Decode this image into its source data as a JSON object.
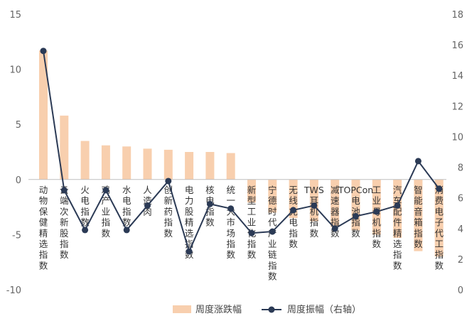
{
  "chart_data": {
    "type": "bar+line",
    "title": "",
    "categories": [
      "动物保健精选指数",
      "云端次新股指数",
      "火电指数",
      "鸡产业指数",
      "水电指数",
      "人造肉",
      "创新药指数",
      "电力股精选指数",
      "核电指数",
      "统一大市场指数",
      "新型工业化指数",
      "宁德时代产业链指数",
      "无线充电指数",
      "TWS耳机指数",
      "减速器指数",
      "TOPCon电池指数",
      "工业母机指数",
      "汽车配件精选指数",
      "智能音箱指数",
      "消费电子代工指数"
    ],
    "series": [
      {
        "name": "周度涨跌幅",
        "axis": "left",
        "kind": "bar",
        "color": "#f8cfae",
        "values": [
          11.7,
          5.8,
          3.5,
          3.1,
          3.0,
          2.8,
          2.7,
          2.5,
          2.5,
          2.4,
          -2.1,
          -3.0,
          -3.5,
          -3.8,
          -4.3,
          -4.6,
          -5.0,
          -5.3,
          -6.5,
          -7.0
        ]
      },
      {
        "name": "周度振幅（右轴）",
        "axis": "right",
        "kind": "line",
        "color": "#2b3a55",
        "values": [
          15.6,
          6.5,
          3.9,
          6.5,
          3.9,
          5.5,
          7.1,
          2.5,
          5.6,
          5.3,
          3.7,
          3.8,
          5.2,
          5.5,
          4.0,
          4.8,
          5.1,
          5.5,
          8.4,
          6.6
        ]
      }
    ],
    "yleft": {
      "lim": [
        -10,
        15
      ],
      "ticks": [
        -10,
        -5,
        0,
        5,
        10,
        15
      ]
    },
    "yright": {
      "lim": [
        0,
        18
      ],
      "ticks": [
        0,
        2,
        4,
        6,
        8,
        10,
        12,
        14,
        16,
        18
      ]
    },
    "grid": false,
    "legend_position": "bottom"
  }
}
